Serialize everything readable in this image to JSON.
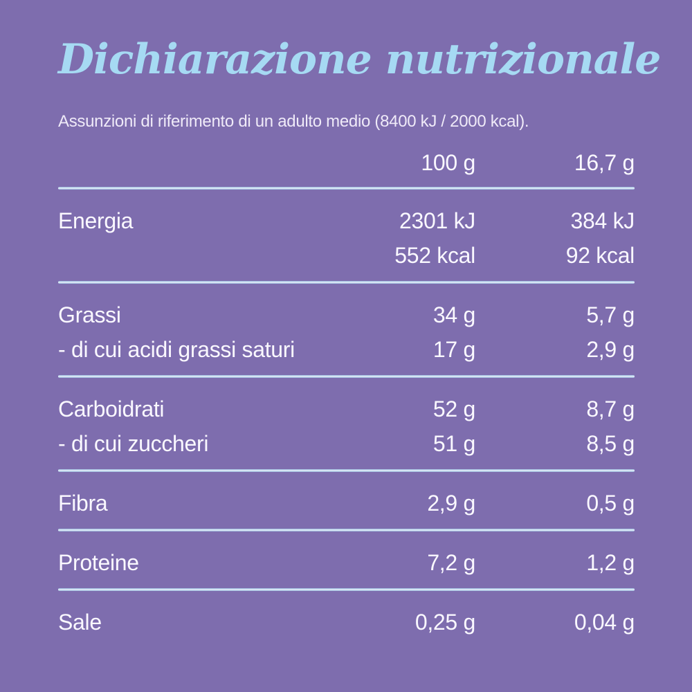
{
  "theme": {
    "background": "#7e6dae",
    "title_color": "#a6daf3",
    "text_color": "#faf8ff",
    "subtitle_color": "#efeaf8",
    "divider_color": "#bcd6ee"
  },
  "title": "Dichiarazione nutrizionale",
  "subtitle": "Assunzioni di riferimento di un adulto medio (8400 kJ / 2000 kcal).",
  "table": {
    "header": {
      "label": "",
      "per_100g": "100 g",
      "per_portion": "16,7 g"
    },
    "groups": [
      {
        "rows": [
          {
            "label": "Energia",
            "per_100g": "2301 kJ",
            "per_portion": "384 kJ"
          },
          {
            "label": "",
            "per_100g": "552 kcal",
            "per_portion": "92 kcal"
          }
        ]
      },
      {
        "rows": [
          {
            "label": "Grassi",
            "per_100g": "34 g",
            "per_portion": "5,7 g"
          },
          {
            "label": "- di cui acidi grassi saturi",
            "per_100g": "17 g",
            "per_portion": "2,9 g"
          }
        ]
      },
      {
        "rows": [
          {
            "label": "Carboidrati",
            "per_100g": "52 g",
            "per_portion": "8,7 g"
          },
          {
            "label": "- di cui zuccheri",
            "per_100g": "51 g",
            "per_portion": "8,5 g"
          }
        ]
      },
      {
        "rows": [
          {
            "label": "Fibra",
            "per_100g": "2,9 g",
            "per_portion": "0,5 g"
          }
        ]
      },
      {
        "rows": [
          {
            "label": "Proteine",
            "per_100g": "7,2 g",
            "per_portion": "1,2 g"
          }
        ]
      },
      {
        "rows": [
          {
            "label": "Sale",
            "per_100g": "0,25 g",
            "per_portion": "0,04 g"
          }
        ]
      }
    ]
  }
}
